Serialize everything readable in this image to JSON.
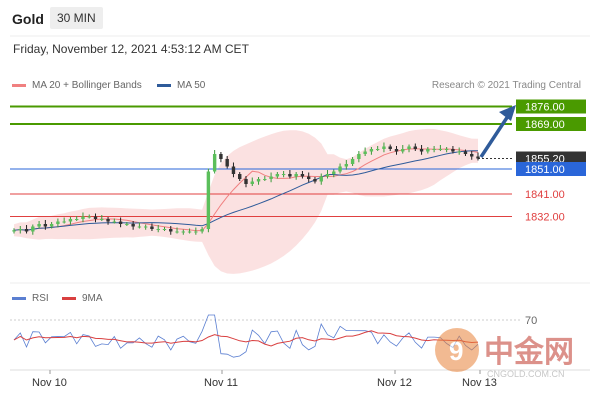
{
  "header": {
    "title": "Gold",
    "timeframe": "30 MIN"
  },
  "datetime": "Friday, November 12, 2021 4:53:12 AM CET",
  "legend": {
    "items": [
      {
        "label": "MA 20 + Bollinger Bands",
        "color": "#f08080"
      },
      {
        "label": "MA 50",
        "color": "#2f5b9a"
      }
    ],
    "copyright": "Research © 2021 Trading Central"
  },
  "levels": [
    {
      "value": 1876.0,
      "label": "1876.00",
      "kind": "resistance",
      "color": "#4a9a00"
    },
    {
      "value": 1869.0,
      "label": "1869.00",
      "kind": "resistance",
      "color": "#4a9a00"
    },
    {
      "value": 1855.2,
      "label": "1855.20",
      "kind": "current",
      "color": "#333333"
    },
    {
      "value": 1851.0,
      "label": "1851.00",
      "kind": "pivot",
      "color": "#2a66d9"
    },
    {
      "value": 1841.0,
      "label": "1841.00",
      "kind": "support",
      "color": "#e04040"
    },
    {
      "value": 1832.0,
      "label": "1832.00",
      "kind": "support",
      "color": "#e04040"
    }
  ],
  "rsi_panel": {
    "legend": [
      {
        "label": "RSI",
        "color": "#5b7fd1"
      },
      {
        "label": "9MA",
        "color": "#d94040"
      }
    ],
    "level": "70"
  },
  "xaxis": {
    "labels": [
      "Nov 10",
      "Nov 11",
      "Nov 12",
      "Nov 13"
    ]
  },
  "watermark": "CNGOLD.COM.CN",
  "chart_data": {
    "type": "line",
    "title": "Gold",
    "price_levels": [
      1876.0,
      1869.0,
      1855.2,
      1851.0,
      1841.0,
      1832.0
    ],
    "series": [
      {
        "name": "MA 20 + Bollinger Bands",
        "color": "#f08080"
      },
      {
        "name": "MA 50",
        "color": "#2f5b9a"
      }
    ],
    "close_approx": [
      1826.5,
      1827,
      1826,
      1828,
      1829,
      1828,
      1829,
      1830,
      1830,
      1831,
      1831,
      1832,
      1832,
      1831,
      1831,
      1830,
      1830,
      1829,
      1829,
      1828,
      1828,
      1828,
      1827,
      1827,
      1827,
      1826,
      1826,
      1826,
      1826,
      1826,
      1827,
      1850,
      1857,
      1855,
      1852,
      1849,
      1847,
      1845,
      1846,
      1847,
      1847,
      1848,
      1849,
      1849,
      1848,
      1849,
      1848,
      1847,
      1846,
      1848,
      1849,
      1850,
      1852,
      1853,
      1855,
      1857,
      1858,
      1859,
      1859,
      1860,
      1859,
      1858,
      1859,
      1860,
      1859,
      1858,
      1859,
      1859,
      1859,
      1859,
      1858,
      1858,
      1857,
      1856,
      1855.2
    ],
    "rsi_level": 70,
    "forecast_target": 1876.0
  }
}
